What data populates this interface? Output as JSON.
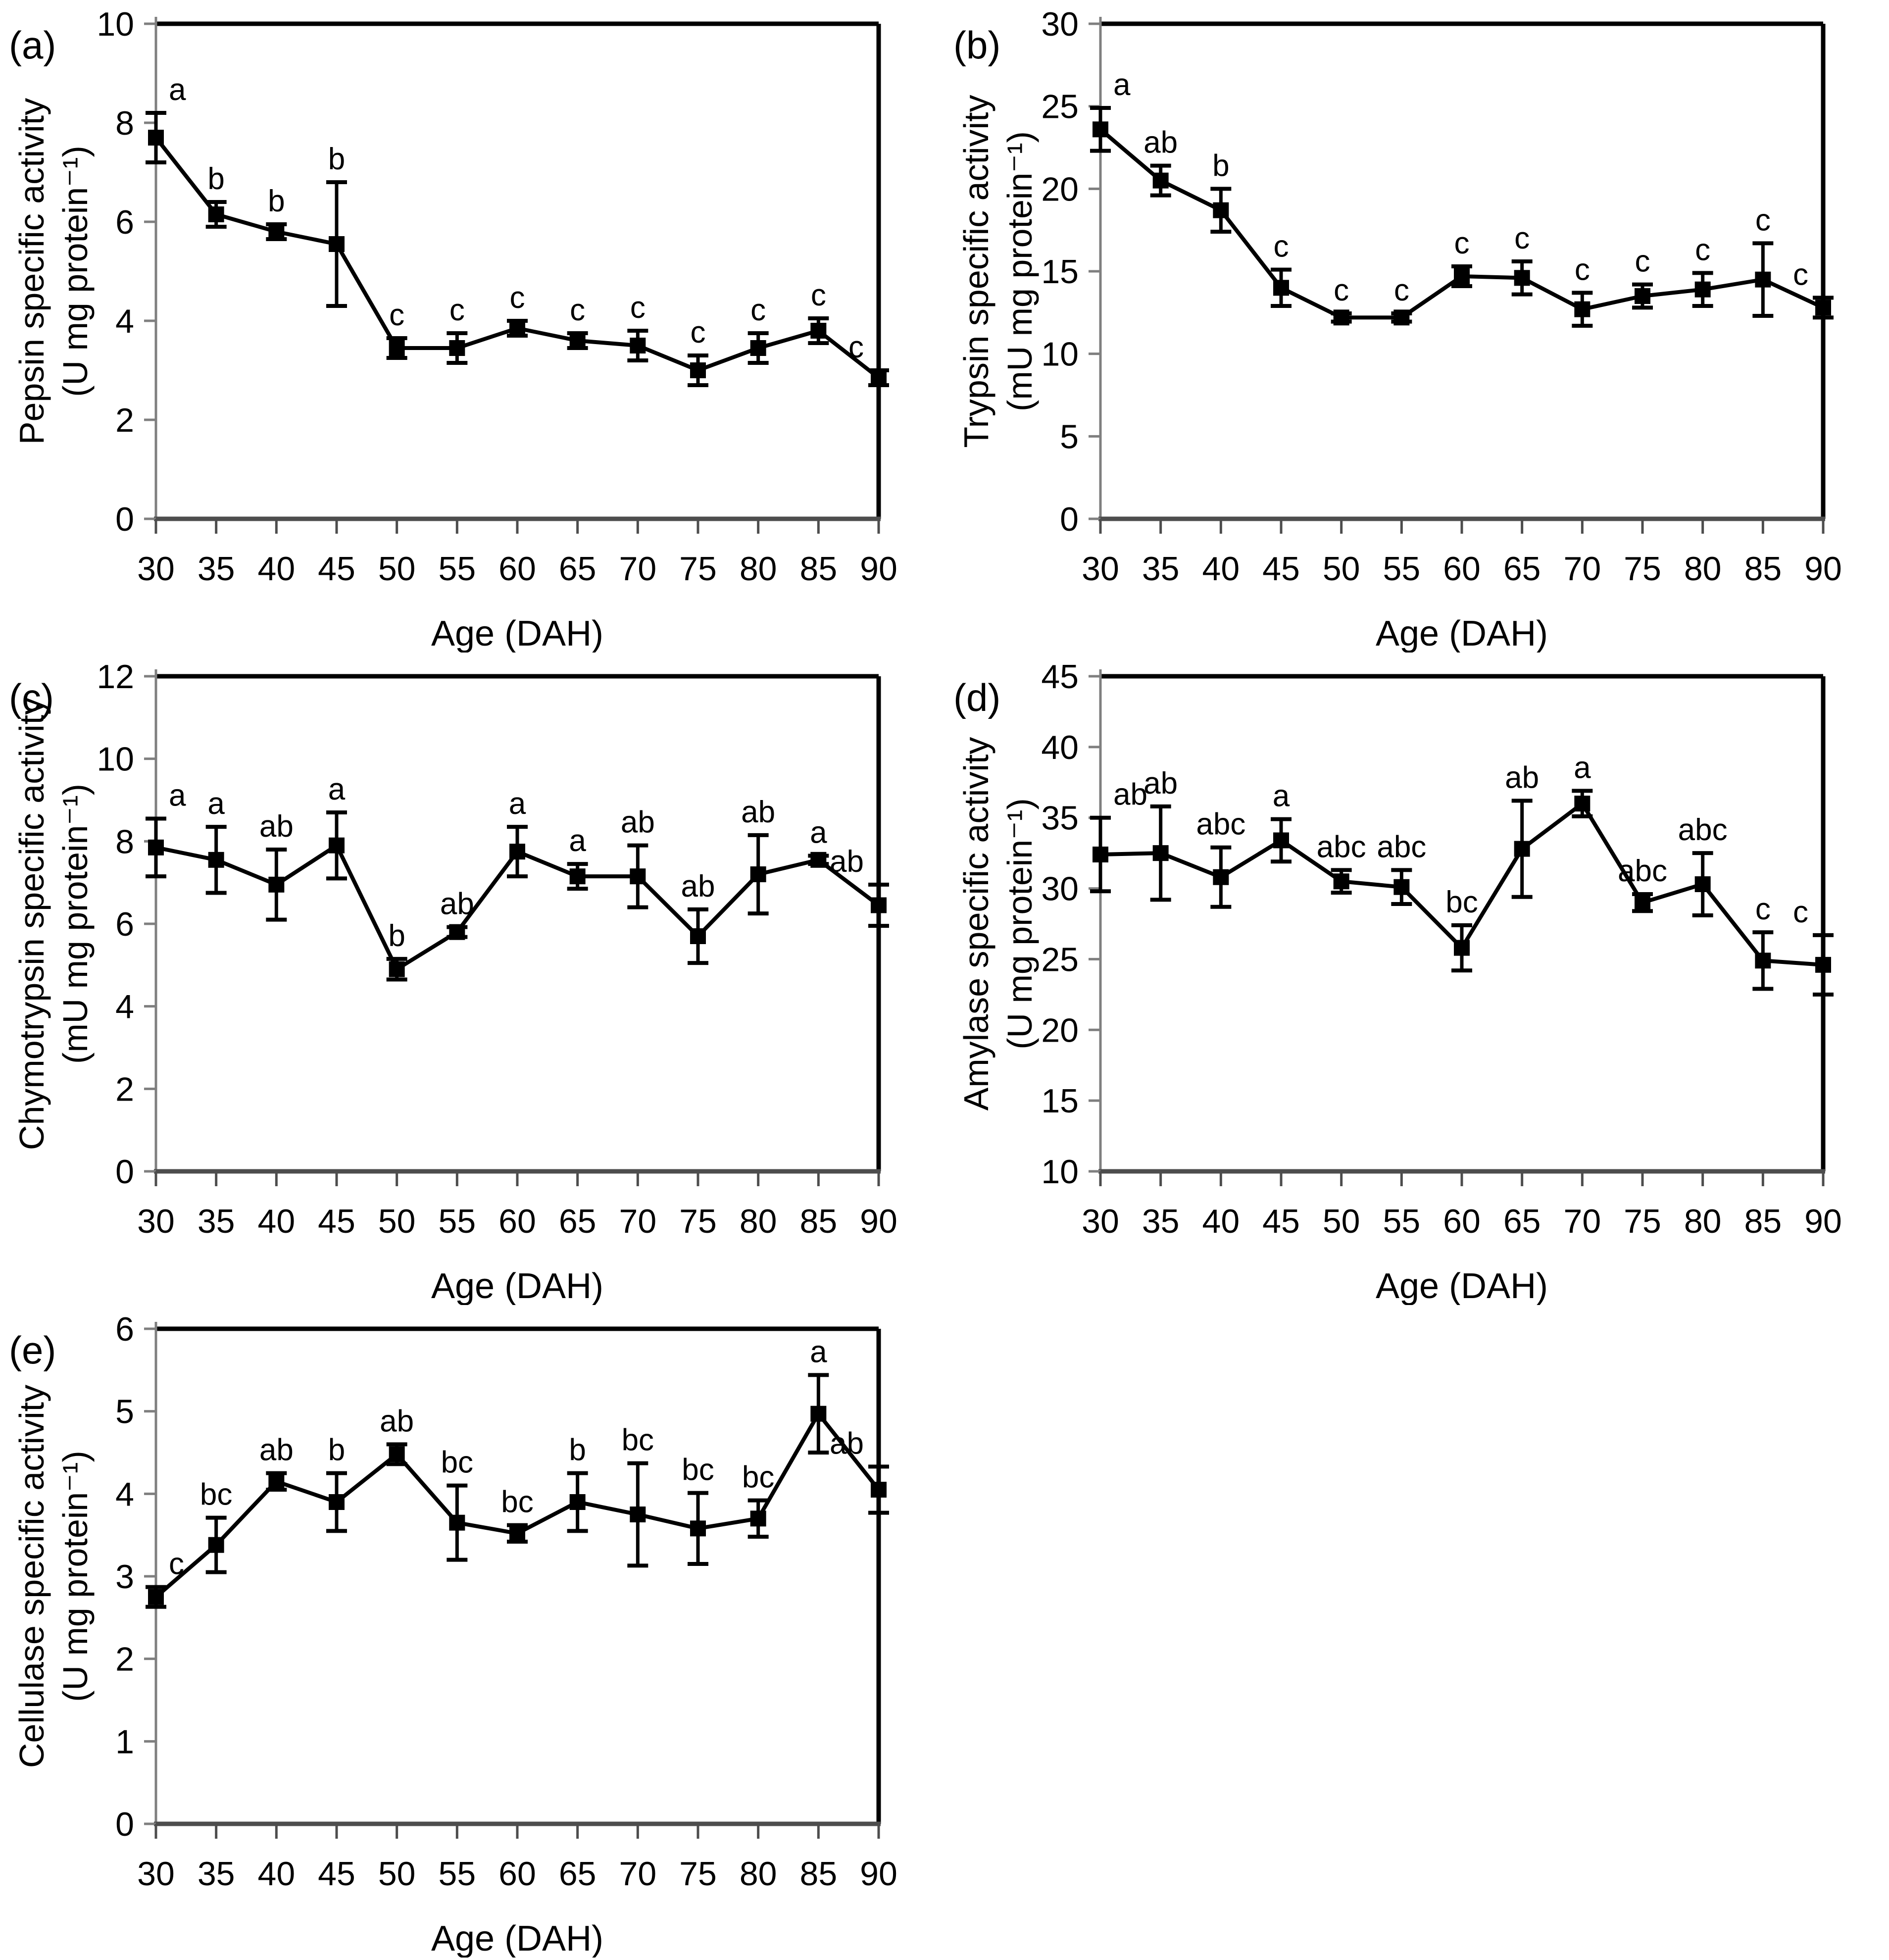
{
  "figure": {
    "background": "#ffffff",
    "line_color": "#000000",
    "axis_color_left_bottom": "#7f7f7f",
    "border_color": "#000000",
    "x_axis_label": "Age (DAH)",
    "x_tick_labels": [
      "30",
      "35",
      "40",
      "45",
      "50",
      "55",
      "60",
      "65",
      "70",
      "75",
      "80",
      "85",
      "90"
    ]
  },
  "chart_data": [
    {
      "id": "a",
      "panel_label": "(a)",
      "type": "line",
      "series_name": "Pepsin specific activity",
      "ylabel_lines": [
        "Pepsin specific activity",
        "(U mg protein⁻¹)"
      ],
      "xlabel": "Age (DAH)",
      "x": [
        30,
        35,
        40,
        45,
        50,
        55,
        60,
        65,
        70,
        75,
        80,
        85,
        90
      ],
      "values": [
        7.7,
        6.15,
        5.8,
        5.55,
        3.45,
        3.45,
        3.85,
        3.6,
        3.5,
        3.0,
        3.45,
        3.8,
        2.85
      ],
      "errors": [
        0.5,
        0.25,
        0.15,
        1.25,
        0.2,
        0.3,
        0.15,
        0.15,
        0.3,
        0.3,
        0.3,
        0.25,
        0.15
      ],
      "letters": [
        "a",
        "b",
        "b",
        "b",
        "c",
        "c",
        "c",
        "c",
        "c",
        "c",
        "c",
        "c",
        "c"
      ],
      "ylim": [
        0,
        10
      ],
      "yticks": [
        0,
        2,
        4,
        6,
        8,
        10
      ],
      "grid": false,
      "legend": "none",
      "marker": "square"
    },
    {
      "id": "b",
      "panel_label": "(b)",
      "type": "line",
      "series_name": "Trypsin specific activity",
      "ylabel_lines": [
        "Trypsin specific activity",
        "(mU mg protein⁻¹)"
      ],
      "xlabel": "Age (DAH)",
      "x": [
        30,
        35,
        40,
        45,
        50,
        55,
        60,
        65,
        70,
        75,
        80,
        85,
        90
      ],
      "values": [
        23.6,
        20.5,
        18.7,
        14.0,
        12.2,
        12.2,
        14.7,
        14.6,
        12.7,
        13.5,
        13.9,
        14.5,
        12.8
      ],
      "errors": [
        1.3,
        0.9,
        1.3,
        1.1,
        0.25,
        0.25,
        0.6,
        1.0,
        1.0,
        0.7,
        1.0,
        2.2,
        0.6
      ],
      "letters": [
        "a",
        "ab",
        "b",
        "c",
        "c",
        "c",
        "c",
        "c",
        "c",
        "c",
        "c",
        "c",
        "c"
      ],
      "ylim": [
        0,
        30
      ],
      "yticks": [
        0,
        5,
        10,
        15,
        20,
        25,
        30
      ],
      "grid": false,
      "legend": "none",
      "marker": "square"
    },
    {
      "id": "c",
      "panel_label": "(c)",
      "type": "line",
      "series_name": "Chymotrypsin specific activity",
      "ylabel_lines": [
        "Chymotrypsin specific activity",
        "(mU mg protein⁻¹)"
      ],
      "xlabel": "Age (DAH)",
      "x": [
        30,
        35,
        40,
        45,
        50,
        55,
        60,
        65,
        70,
        75,
        80,
        85,
        90
      ],
      "values": [
        7.85,
        7.55,
        6.95,
        7.9,
        4.9,
        5.8,
        7.75,
        7.15,
        7.15,
        5.7,
        7.2,
        7.55,
        6.45
      ],
      "errors": [
        0.7,
        0.8,
        0.85,
        0.8,
        0.25,
        0.12,
        0.6,
        0.3,
        0.75,
        0.65,
        0.95,
        0.1,
        0.5
      ],
      "letters": [
        "a",
        "a",
        "ab",
        "a",
        "b",
        "ab",
        "a",
        "a",
        "ab",
        "ab",
        "ab",
        "a",
        "ab"
      ],
      "ylim": [
        0,
        12
      ],
      "yticks": [
        0,
        2,
        4,
        6,
        8,
        10,
        12
      ],
      "grid": false,
      "legend": "none",
      "marker": "square"
    },
    {
      "id": "d",
      "panel_label": "(d)",
      "type": "line",
      "series_name": "Amylase specific activity",
      "ylabel_lines": [
        "Amylase specific activity",
        "(U mg protein⁻¹)"
      ],
      "xlabel": "Age (DAH)",
      "x": [
        30,
        35,
        40,
        45,
        50,
        55,
        60,
        65,
        70,
        75,
        80,
        85,
        90
      ],
      "values": [
        32.4,
        32.5,
        30.8,
        33.4,
        30.5,
        30.1,
        25.8,
        32.8,
        36.0,
        29.0,
        30.3,
        24.9,
        24.6
      ],
      "errors": [
        2.6,
        3.3,
        2.1,
        1.5,
        0.8,
        1.2,
        1.6,
        3.4,
        0.9,
        0.6,
        2.2,
        2.0,
        2.1
      ],
      "letters": [
        "ab",
        "ab",
        "abc",
        "a",
        "abc",
        "abc",
        "bc",
        "ab",
        "a",
        "abc",
        "abc",
        "c",
        "c"
      ],
      "ylim": [
        10,
        45
      ],
      "yticks": [
        10,
        15,
        20,
        25,
        30,
        35,
        40,
        45
      ],
      "grid": false,
      "legend": "none",
      "marker": "square"
    },
    {
      "id": "e",
      "panel_label": "(e)",
      "type": "line",
      "series_name": "Cellulase specific activity",
      "ylabel_lines": [
        "Cellulase specific activity",
        "(U mg protein⁻¹)"
      ],
      "xlabel": "Age (DAH)",
      "x": [
        30,
        35,
        40,
        45,
        50,
        55,
        60,
        65,
        70,
        75,
        80,
        85,
        90
      ],
      "values": [
        2.75,
        3.38,
        4.15,
        3.9,
        4.48,
        3.65,
        3.52,
        3.9,
        3.75,
        3.58,
        3.7,
        4.97,
        4.05
      ],
      "errors": [
        0.12,
        0.33,
        0.1,
        0.35,
        0.12,
        0.45,
        0.1,
        0.35,
        0.62,
        0.43,
        0.22,
        0.47,
        0.28
      ],
      "letters": [
        "c",
        "bc",
        "ab",
        "b",
        "ab",
        "bc",
        "bc",
        "b",
        "bc",
        "bc",
        "bc",
        "a",
        "ab"
      ],
      "ylim": [
        0,
        6
      ],
      "yticks": [
        0,
        1,
        2,
        3,
        4,
        5,
        6
      ],
      "grid": false,
      "legend": "none",
      "marker": "square"
    }
  ]
}
